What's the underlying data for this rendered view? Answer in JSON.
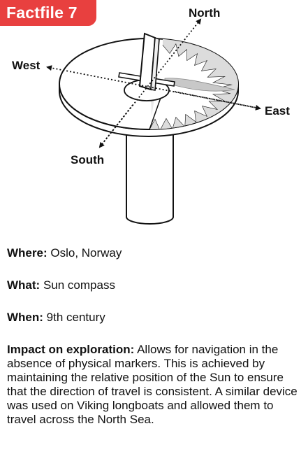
{
  "badge": {
    "label": "Factfile 7"
  },
  "diagram": {
    "labels": {
      "north": "North",
      "east": "East",
      "south": "South",
      "west": "West"
    }
  },
  "facts": {
    "where": {
      "label": "Where:",
      "value": "Oslo, Norway"
    },
    "what": {
      "label": "What:",
      "value": "Sun compass"
    },
    "when": {
      "label": "When:",
      "value": "9th century"
    },
    "impact": {
      "label": "Impact on exploration:",
      "value": "Allows for navigation in the absence of physical markers. This is achieved by maintaining the relative position of the Sun to ensure that the direction of travel is consistent. A similar device was used on Viking longboats and allowed them to travel across the North Sea."
    }
  }
}
